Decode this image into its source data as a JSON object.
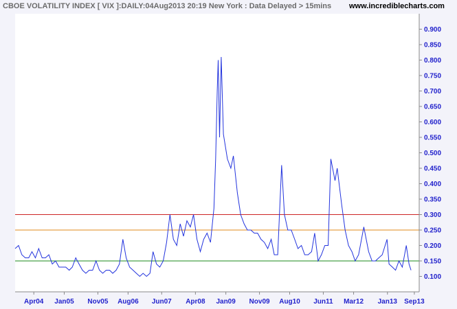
{
  "header": {
    "title": "CBOE VOLATILITY INDEX [ VIX ]:DAILY:04Aug2013 20:19 New York : Data Delayed > 15mins",
    "site": "www.incrediblecharts.com"
  },
  "colors": {
    "background": "#f3f3fa",
    "plot_background": "#ffffff",
    "series": "#2233dd",
    "axis_text": "#2222cc",
    "red_line": "#cc2222",
    "orange_line": "#e08a1a",
    "green_line": "#1a8a1a"
  },
  "chart_data": {
    "type": "line",
    "title": "CBOE VOLATILITY INDEX [ VIX ]:DAILY:04Aug2013 20:19 New York : Data Delayed > 15mins",
    "xlabel": "",
    "ylabel": "",
    "ylim": [
      0.05,
      0.95
    ],
    "xlim": [
      "2003-10-15",
      "2013-10-15"
    ],
    "grid": false,
    "y_ticks": [
      "0.100",
      "0.150",
      "0.200",
      "0.250",
      "0.300",
      "0.350",
      "0.400",
      "0.450",
      "0.500",
      "0.550",
      "0.600",
      "0.650",
      "0.700",
      "0.750",
      "0.800",
      "0.850",
      "0.900"
    ],
    "x_ticks": [
      {
        "label": "Apr04",
        "date": "2004-04-01"
      },
      {
        "label": "Jan05",
        "date": "2005-01-01"
      },
      {
        "label": "Nov05",
        "date": "2005-11-01"
      },
      {
        "label": "Aug06",
        "date": "2006-08-01"
      },
      {
        "label": "Jun07",
        "date": "2007-06-01"
      },
      {
        "label": "Apr08",
        "date": "2008-04-01"
      },
      {
        "label": "Jan09",
        "date": "2009-01-01"
      },
      {
        "label": "Nov09",
        "date": "2009-11-01"
      },
      {
        "label": "Aug10",
        "date": "2010-08-01"
      },
      {
        "label": "Jun11",
        "date": "2011-06-01"
      },
      {
        "label": "Mar12",
        "date": "2012-03-01"
      },
      {
        "label": "Jan13",
        "date": "2013-01-01"
      },
      {
        "label": "Sep13",
        "date": "2013-09-01"
      }
    ],
    "horizontal_lines": [
      {
        "value": 0.3,
        "color": "#cc2222"
      },
      {
        "value": 0.25,
        "color": "#e08a1a"
      },
      {
        "value": 0.15,
        "color": "#1a8a1a"
      }
    ],
    "series": [
      {
        "color": "#2233dd",
        "points": [
          [
            "2003-10-15",
            0.19
          ],
          [
            "2003-11-15",
            0.2
          ],
          [
            "2003-12-15",
            0.17
          ],
          [
            "2004-01-15",
            0.16
          ],
          [
            "2004-02-15",
            0.16
          ],
          [
            "2004-03-15",
            0.18
          ],
          [
            "2004-04-15",
            0.16
          ],
          [
            "2004-05-15",
            0.19
          ],
          [
            "2004-06-15",
            0.16
          ],
          [
            "2004-07-15",
            0.16
          ],
          [
            "2004-08-15",
            0.17
          ],
          [
            "2004-09-15",
            0.14
          ],
          [
            "2004-10-15",
            0.15
          ],
          [
            "2004-11-15",
            0.13
          ],
          [
            "2004-12-15",
            0.13
          ],
          [
            "2005-01-15",
            0.13
          ],
          [
            "2005-02-15",
            0.12
          ],
          [
            "2005-03-15",
            0.13
          ],
          [
            "2005-04-15",
            0.16
          ],
          [
            "2005-05-15",
            0.14
          ],
          [
            "2005-06-15",
            0.12
          ],
          [
            "2005-07-15",
            0.11
          ],
          [
            "2005-08-15",
            0.12
          ],
          [
            "2005-09-15",
            0.12
          ],
          [
            "2005-10-15",
            0.15
          ],
          [
            "2005-11-15",
            0.12
          ],
          [
            "2005-12-15",
            0.11
          ],
          [
            "2006-01-15",
            0.12
          ],
          [
            "2006-02-15",
            0.12
          ],
          [
            "2006-03-15",
            0.11
          ],
          [
            "2006-04-15",
            0.12
          ],
          [
            "2006-05-15",
            0.14
          ],
          [
            "2006-06-15",
            0.22
          ],
          [
            "2006-07-15",
            0.16
          ],
          [
            "2006-08-15",
            0.13
          ],
          [
            "2006-09-15",
            0.12
          ],
          [
            "2006-10-15",
            0.11
          ],
          [
            "2006-11-15",
            0.1
          ],
          [
            "2006-12-15",
            0.11
          ],
          [
            "2007-01-15",
            0.1
          ],
          [
            "2007-02-15",
            0.11
          ],
          [
            "2007-03-15",
            0.18
          ],
          [
            "2007-04-15",
            0.14
          ],
          [
            "2007-05-15",
            0.13
          ],
          [
            "2007-06-15",
            0.15
          ],
          [
            "2007-07-15",
            0.21
          ],
          [
            "2007-08-15",
            0.3
          ],
          [
            "2007-09-15",
            0.22
          ],
          [
            "2007-10-15",
            0.2
          ],
          [
            "2007-11-15",
            0.27
          ],
          [
            "2007-12-15",
            0.23
          ],
          [
            "2008-01-15",
            0.28
          ],
          [
            "2008-02-15",
            0.26
          ],
          [
            "2008-03-15",
            0.3
          ],
          [
            "2008-04-15",
            0.22
          ],
          [
            "2008-05-15",
            0.18
          ],
          [
            "2008-06-15",
            0.22
          ],
          [
            "2008-07-15",
            0.24
          ],
          [
            "2008-08-15",
            0.21
          ],
          [
            "2008-09-15",
            0.32
          ],
          [
            "2008-10-01",
            0.48
          ],
          [
            "2008-10-15",
            0.7
          ],
          [
            "2008-10-24",
            0.8
          ],
          [
            "2008-11-05",
            0.55
          ],
          [
            "2008-11-20",
            0.81
          ],
          [
            "2008-12-10",
            0.56
          ],
          [
            "2009-01-15",
            0.48
          ],
          [
            "2009-02-15",
            0.45
          ],
          [
            "2009-03-10",
            0.49
          ],
          [
            "2009-04-15",
            0.37
          ],
          [
            "2009-05-15",
            0.3
          ],
          [
            "2009-06-15",
            0.27
          ],
          [
            "2009-07-15",
            0.25
          ],
          [
            "2009-08-15",
            0.25
          ],
          [
            "2009-09-15",
            0.24
          ],
          [
            "2009-10-15",
            0.24
          ],
          [
            "2009-11-15",
            0.22
          ],
          [
            "2009-12-15",
            0.21
          ],
          [
            "2010-01-15",
            0.19
          ],
          [
            "2010-02-15",
            0.22
          ],
          [
            "2010-03-15",
            0.17
          ],
          [
            "2010-04-15",
            0.17
          ],
          [
            "2010-05-20",
            0.46
          ],
          [
            "2010-06-15",
            0.3
          ],
          [
            "2010-07-15",
            0.25
          ],
          [
            "2010-08-15",
            0.25
          ],
          [
            "2010-09-15",
            0.22
          ],
          [
            "2010-10-15",
            0.19
          ],
          [
            "2010-11-15",
            0.2
          ],
          [
            "2010-12-15",
            0.17
          ],
          [
            "2011-01-15",
            0.17
          ],
          [
            "2011-02-15",
            0.18
          ],
          [
            "2011-03-15",
            0.24
          ],
          [
            "2011-04-15",
            0.15
          ],
          [
            "2011-05-15",
            0.17
          ],
          [
            "2011-06-15",
            0.2
          ],
          [
            "2011-07-15",
            0.2
          ],
          [
            "2011-08-08",
            0.48
          ],
          [
            "2011-09-15",
            0.41
          ],
          [
            "2011-10-05",
            0.45
          ],
          [
            "2011-11-15",
            0.33
          ],
          [
            "2011-12-15",
            0.25
          ],
          [
            "2012-01-15",
            0.2
          ],
          [
            "2012-02-15",
            0.18
          ],
          [
            "2012-03-15",
            0.15
          ],
          [
            "2012-04-15",
            0.17
          ],
          [
            "2012-06-01",
            0.26
          ],
          [
            "2012-07-15",
            0.18
          ],
          [
            "2012-08-15",
            0.15
          ],
          [
            "2012-09-15",
            0.15
          ],
          [
            "2012-10-15",
            0.16
          ],
          [
            "2012-11-15",
            0.17
          ],
          [
            "2012-12-28",
            0.22
          ],
          [
            "2013-01-15",
            0.14
          ],
          [
            "2013-02-15",
            0.13
          ],
          [
            "2013-03-15",
            0.12
          ],
          [
            "2013-04-15",
            0.15
          ],
          [
            "2013-05-15",
            0.13
          ],
          [
            "2013-06-20",
            0.2
          ],
          [
            "2013-07-15",
            0.14
          ],
          [
            "2013-08-02",
            0.12
          ]
        ]
      }
    ]
  }
}
